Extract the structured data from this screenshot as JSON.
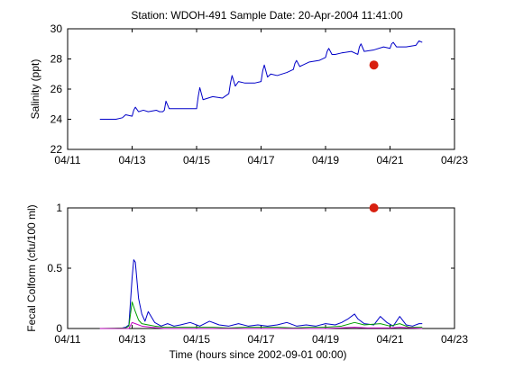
{
  "title": "Station: WDOH-491  Sample Date: 20-Apr-2004 11:41:00",
  "chart_data": [
    {
      "type": "line",
      "ylabel": "Salinity (ppt)",
      "xlabel": "",
      "xlim": [
        11,
        23
      ],
      "ylim": [
        22,
        30
      ],
      "xticks": [
        {
          "value": 11,
          "label": "04/11"
        },
        {
          "value": 13,
          "label": "04/13"
        },
        {
          "value": 15,
          "label": "04/15"
        },
        {
          "value": 17,
          "label": "04/17"
        },
        {
          "value": 19,
          "label": "04/19"
        },
        {
          "value": 21,
          "label": "04/21"
        },
        {
          "value": 23,
          "label": "04/23"
        }
      ],
      "yticks": [
        22,
        24,
        26,
        28,
        30
      ],
      "series": [
        {
          "color": "#0000c8",
          "x": [
            12.0,
            12.5,
            12.7,
            12.8,
            13.0,
            13.05,
            13.1,
            13.2,
            13.35,
            13.5,
            13.75,
            13.85,
            13.95,
            14.0,
            14.05,
            14.15,
            14.5,
            14.8,
            15.0,
            15.05,
            15.1,
            15.2,
            15.5,
            15.8,
            16.0,
            16.05,
            16.1,
            16.2,
            16.3,
            16.5,
            16.8,
            17.0,
            17.05,
            17.1,
            17.2,
            17.3,
            17.5,
            17.8,
            18.0,
            18.05,
            18.1,
            18.2,
            18.3,
            18.5,
            18.8,
            19.0,
            19.05,
            19.1,
            19.2,
            19.3,
            19.5,
            19.8,
            20.0,
            20.05,
            20.1,
            20.2,
            20.5,
            20.8,
            21.0,
            21.05,
            21.1,
            21.2,
            21.5,
            21.8,
            21.9,
            22.0
          ],
          "y": [
            24.0,
            24.0,
            24.1,
            24.3,
            24.2,
            24.6,
            24.8,
            24.5,
            24.6,
            24.5,
            24.6,
            24.5,
            24.5,
            24.6,
            25.2,
            24.7,
            24.7,
            24.7,
            24.7,
            25.5,
            26.1,
            25.3,
            25.5,
            25.4,
            25.7,
            26.4,
            26.9,
            26.2,
            26.5,
            26.4,
            26.4,
            26.5,
            27.2,
            27.6,
            26.8,
            27.0,
            26.9,
            27.1,
            27.3,
            27.7,
            27.9,
            27.5,
            27.6,
            27.8,
            27.9,
            28.1,
            28.5,
            28.7,
            28.3,
            28.3,
            28.4,
            28.5,
            28.3,
            28.8,
            29.0,
            28.5,
            28.6,
            28.8,
            28.7,
            29.0,
            29.1,
            28.8,
            28.8,
            28.9,
            29.2,
            29.1
          ]
        }
      ],
      "sample": {
        "x": 20.5,
        "y": 27.6,
        "color": "#d82010"
      }
    },
    {
      "type": "line",
      "ylabel": "Fecal Colform (cfu/100 ml)",
      "xlabel": "Time (hours since 2002-09-01 00:00)",
      "xlim": [
        11,
        23
      ],
      "ylim": [
        0,
        1
      ],
      "xticks": [
        {
          "value": 11,
          "label": "04/11"
        },
        {
          "value": 13,
          "label": "04/13"
        },
        {
          "value": 15,
          "label": "04/15"
        },
        {
          "value": 17,
          "label": "04/17"
        },
        {
          "value": 19,
          "label": "04/19"
        },
        {
          "value": 21,
          "label": "04/21"
        },
        {
          "value": 23,
          "label": "04/23"
        }
      ],
      "yticks": [
        {
          "value": 0,
          "label": "0"
        },
        {
          "value": 0.5,
          "label": "0.5"
        },
        {
          "value": 1,
          "label": "1"
        }
      ],
      "series": [
        {
          "color": "#0000c8",
          "x": [
            12.0,
            12.5,
            12.7,
            12.8,
            12.9,
            13.0,
            13.05,
            13.1,
            13.2,
            13.3,
            13.4,
            13.5,
            13.7,
            13.9,
            14.1,
            14.3,
            14.5,
            14.8,
            15.1,
            15.4,
            15.7,
            16.0,
            16.3,
            16.6,
            16.9,
            17.2,
            17.5,
            17.8,
            18.1,
            18.4,
            18.7,
            19.0,
            19.3,
            19.5,
            19.7,
            19.9,
            20.0,
            20.2,
            20.5,
            20.7,
            20.9,
            21.1,
            21.3,
            21.5,
            21.7,
            21.9,
            22.0
          ],
          "y": [
            0.0,
            0.0,
            0.005,
            0.01,
            0.03,
            0.42,
            0.57,
            0.55,
            0.25,
            0.12,
            0.06,
            0.14,
            0.05,
            0.02,
            0.04,
            0.02,
            0.03,
            0.05,
            0.02,
            0.06,
            0.03,
            0.02,
            0.04,
            0.02,
            0.03,
            0.02,
            0.03,
            0.05,
            0.02,
            0.03,
            0.02,
            0.04,
            0.03,
            0.05,
            0.08,
            0.12,
            0.08,
            0.04,
            0.03,
            0.1,
            0.05,
            0.02,
            0.1,
            0.03,
            0.02,
            0.04,
            0.04
          ]
        },
        {
          "color": "#00a000",
          "x": [
            12.0,
            12.8,
            12.9,
            13.0,
            13.1,
            13.2,
            13.3,
            13.5,
            13.7,
            14.0,
            14.5,
            15.0,
            15.5,
            16.0,
            16.5,
            17.0,
            17.5,
            18.0,
            18.5,
            19.0,
            19.5,
            19.9,
            20.2,
            20.7,
            21.0,
            21.3,
            21.6,
            22.0
          ],
          "y": [
            0.0,
            0.005,
            0.02,
            0.22,
            0.14,
            0.07,
            0.04,
            0.03,
            0.02,
            0.01,
            0.01,
            0.01,
            0.01,
            0.005,
            0.01,
            0.01,
            0.01,
            0.005,
            0.01,
            0.01,
            0.02,
            0.05,
            0.03,
            0.04,
            0.02,
            0.04,
            0.01,
            0.01
          ]
        },
        {
          "color": "#c000c0",
          "x": [
            12.0,
            12.9,
            13.0,
            13.1,
            13.3,
            13.6,
            14.0,
            15.0,
            16.0,
            17.0,
            18.0,
            19.0,
            19.9,
            20.3,
            21.0,
            21.3,
            22.0
          ],
          "y": [
            0.0,
            0.0,
            0.05,
            0.04,
            0.02,
            0.01,
            0.0,
            0.0,
            0.0,
            0.0,
            0.0,
            0.0,
            0.01,
            0.005,
            0.005,
            0.01,
            0.0
          ]
        }
      ],
      "sample": {
        "x": 20.5,
        "y": 1.0,
        "color": "#d82010"
      }
    }
  ]
}
